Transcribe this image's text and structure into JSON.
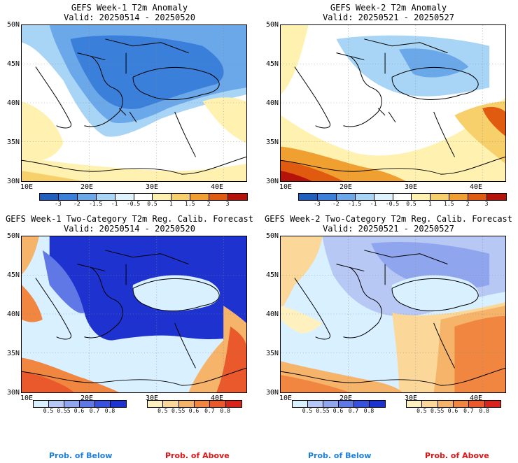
{
  "panels": [
    {
      "title1": "GEFS Week-1 T2m Anomaly",
      "title2": "Valid: 20250514 - 20250520"
    },
    {
      "title1": "GEFS Week-2 T2m Anomaly",
      "title2": "Valid: 20250521 - 20250527"
    },
    {
      "title1": "GEFS Week-1 Two-Category T2m Reg. Calib. Forecast",
      "title2": "Valid: 20250514 - 20250520"
    },
    {
      "title1": "GEFS Week-2 Two-Category T2m Reg. Calib. Forecast",
      "title2": "Valid: 20250521 - 20250527"
    }
  ],
  "axes": {
    "lat_labels": [
      "50N",
      "45N",
      "40N",
      "35N",
      "30N"
    ],
    "lon_labels": [
      "10E",
      "20E",
      "30E",
      "40E"
    ]
  },
  "anomaly_scale": {
    "labels": [
      "-3",
      "-2",
      "-1.5",
      "-1",
      "-0.5",
      "0.5",
      "1",
      "1.5",
      "2",
      "3"
    ],
    "colors": [
      "#1f5fbf",
      "#3a7fd9",
      "#6aa8ea",
      "#a8d4f5",
      "#dff2ff",
      "#ffffff",
      "#fff2b0",
      "#f7cf6b",
      "#f0a030",
      "#e05a10",
      "#b5120a"
    ]
  },
  "prob_scale": {
    "labels": [
      "0.5",
      "0.55",
      "0.6",
      "0.7",
      "0.8"
    ],
    "below_colors": [
      "#d8f0ff",
      "#b8c8f5",
      "#8fa5ee",
      "#5f78e6",
      "#3850de",
      "#1e32cf"
    ],
    "above_colors": [
      "#fff0c0",
      "#fbd79a",
      "#f6b36a",
      "#f0863f",
      "#e9592b",
      "#d9231d"
    ]
  },
  "legend": {
    "below": "Prob. of Below",
    "above": "Prob. of Above"
  },
  "colors": {
    "below_text": "#1c7fe0",
    "above_text": "#e01414"
  }
}
